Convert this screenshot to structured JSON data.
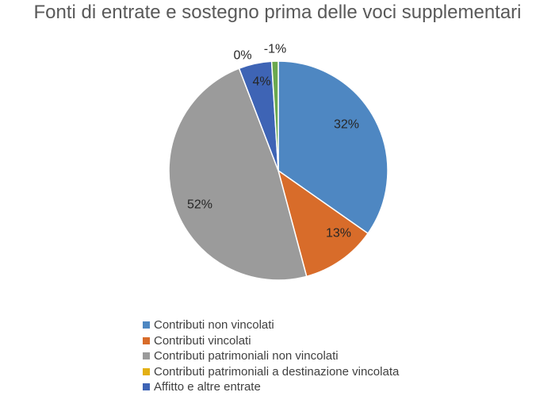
{
  "chart_data": {
    "type": "pie",
    "title": "Fonti di entrate e sostegno prima delle voci supplementari",
    "slices": [
      {
        "name": "Contributi non vincolati",
        "value": 32,
        "label": "32%",
        "color": "#4e87c2"
      },
      {
        "name": "Contributi vincolati",
        "value": 13,
        "label": "13%",
        "color": "#d86c2a"
      },
      {
        "name": "Contributi patrimoniali non vincolati",
        "value": 52,
        "label": "52%",
        "color": "#9b9b9b"
      },
      {
        "name": "Contributi patrimoniali a destinazione vincolata",
        "value": 0,
        "label": "0%",
        "color": "#e3b014"
      },
      {
        "name": "Affitto e altre entrate",
        "value": 4,
        "label": "4%",
        "color": "#3e64b5"
      },
      {
        "name": "",
        "value": -1,
        "label": "-1%",
        "color": "#6aa84f"
      }
    ],
    "legend": {
      "position": "bottom",
      "items": [
        {
          "label": "Contributi non vincolati",
          "color": "#4e87c2"
        },
        {
          "label": "Contributi vincolati",
          "color": "#d86c2a"
        },
        {
          "label": "Contributi patrimoniali non vincolati",
          "color": "#9b9b9b"
        },
        {
          "label": "Contributi patrimoniali a destinazione vincolata",
          "color": "#e3b014"
        },
        {
          "label": "Affitto e altre entrate",
          "color": "#3e64b5"
        }
      ]
    }
  }
}
